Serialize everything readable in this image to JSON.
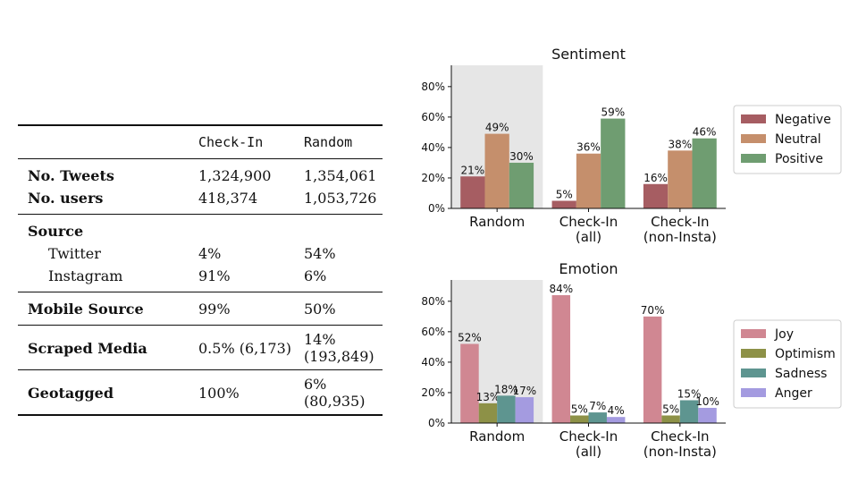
{
  "table": {
    "columns": [
      "",
      "Check-In",
      "Random"
    ],
    "groups": [
      {
        "rows": [
          {
            "label": "No. Tweets",
            "checkin": "1,324,900",
            "random": "1,354,061",
            "bold": true
          },
          {
            "label": "No. users",
            "checkin": "418,374",
            "random": "1,053,726",
            "bold": true
          }
        ]
      },
      {
        "rows": [
          {
            "label": "Source",
            "checkin": "",
            "random": "",
            "bold": true
          },
          {
            "label": "Twitter",
            "checkin": "4%",
            "random": "54%",
            "indent": true
          },
          {
            "label": "Instagram",
            "checkin": "91%",
            "random": "6%",
            "indent": true
          }
        ]
      },
      {
        "rows": [
          {
            "label": "Mobile Source",
            "checkin": "99%",
            "random": "50%",
            "bold": true
          }
        ]
      },
      {
        "rows": [
          {
            "label": "Scraped Media",
            "checkin": "0.5% (6,173)",
            "random": "14% (193,849)",
            "bold": true
          }
        ]
      },
      {
        "rows": [
          {
            "label": "Geotagged",
            "checkin": "100%",
            "random": "6% (80,935)",
            "bold": true
          }
        ]
      }
    ]
  },
  "chart_data": [
    {
      "type": "bar",
      "title": "Sentiment",
      "categories": [
        "Random",
        "Check-In\n(all)",
        "Check-In\n(non-Insta)"
      ],
      "series": [
        {
          "name": "Negative",
          "color": "#a65d62",
          "values": [
            21,
            5,
            16
          ]
        },
        {
          "name": "Neutral",
          "color": "#c58f6c",
          "values": [
            49,
            36,
            38
          ]
        },
        {
          "name": "Positive",
          "color": "#6f9d71",
          "values": [
            30,
            59,
            46
          ]
        }
      ],
      "data_labels": [
        [
          "21%",
          "5%",
          "16%"
        ],
        [
          "49%",
          "36%",
          "38%"
        ],
        [
          "30%",
          "59%",
          "46%"
        ]
      ],
      "y_ticks": [
        "0%",
        "20%",
        "40%",
        "60%",
        "80%"
      ],
      "ylim": [
        0,
        94
      ],
      "highlight_category": 0,
      "legend_position": "right"
    },
    {
      "type": "bar",
      "title": "Emotion",
      "categories": [
        "Random",
        "Check-In\n(all)",
        "Check-In\n(non-Insta)"
      ],
      "series": [
        {
          "name": "Joy",
          "color": "#d08792",
          "values": [
            52,
            84,
            70
          ]
        },
        {
          "name": "Optimism",
          "color": "#8d9147",
          "values": [
            13,
            5,
            5
          ]
        },
        {
          "name": "Sadness",
          "color": "#5e9590",
          "values": [
            18,
            7,
            15
          ]
        },
        {
          "name": "Anger",
          "color": "#a49be0",
          "values": [
            17,
            4,
            10
          ]
        }
      ],
      "data_labels": [
        [
          "52%",
          "84%",
          "70%"
        ],
        [
          "13%",
          "5%",
          "5%"
        ],
        [
          "18%",
          "7%",
          "15%"
        ],
        [
          "17%",
          "4%",
          "10%"
        ]
      ],
      "y_ticks": [
        "0%",
        "20%",
        "40%",
        "60%",
        "80%"
      ],
      "ylim": [
        0,
        94
      ],
      "highlight_category": 0,
      "legend_position": "right"
    }
  ]
}
